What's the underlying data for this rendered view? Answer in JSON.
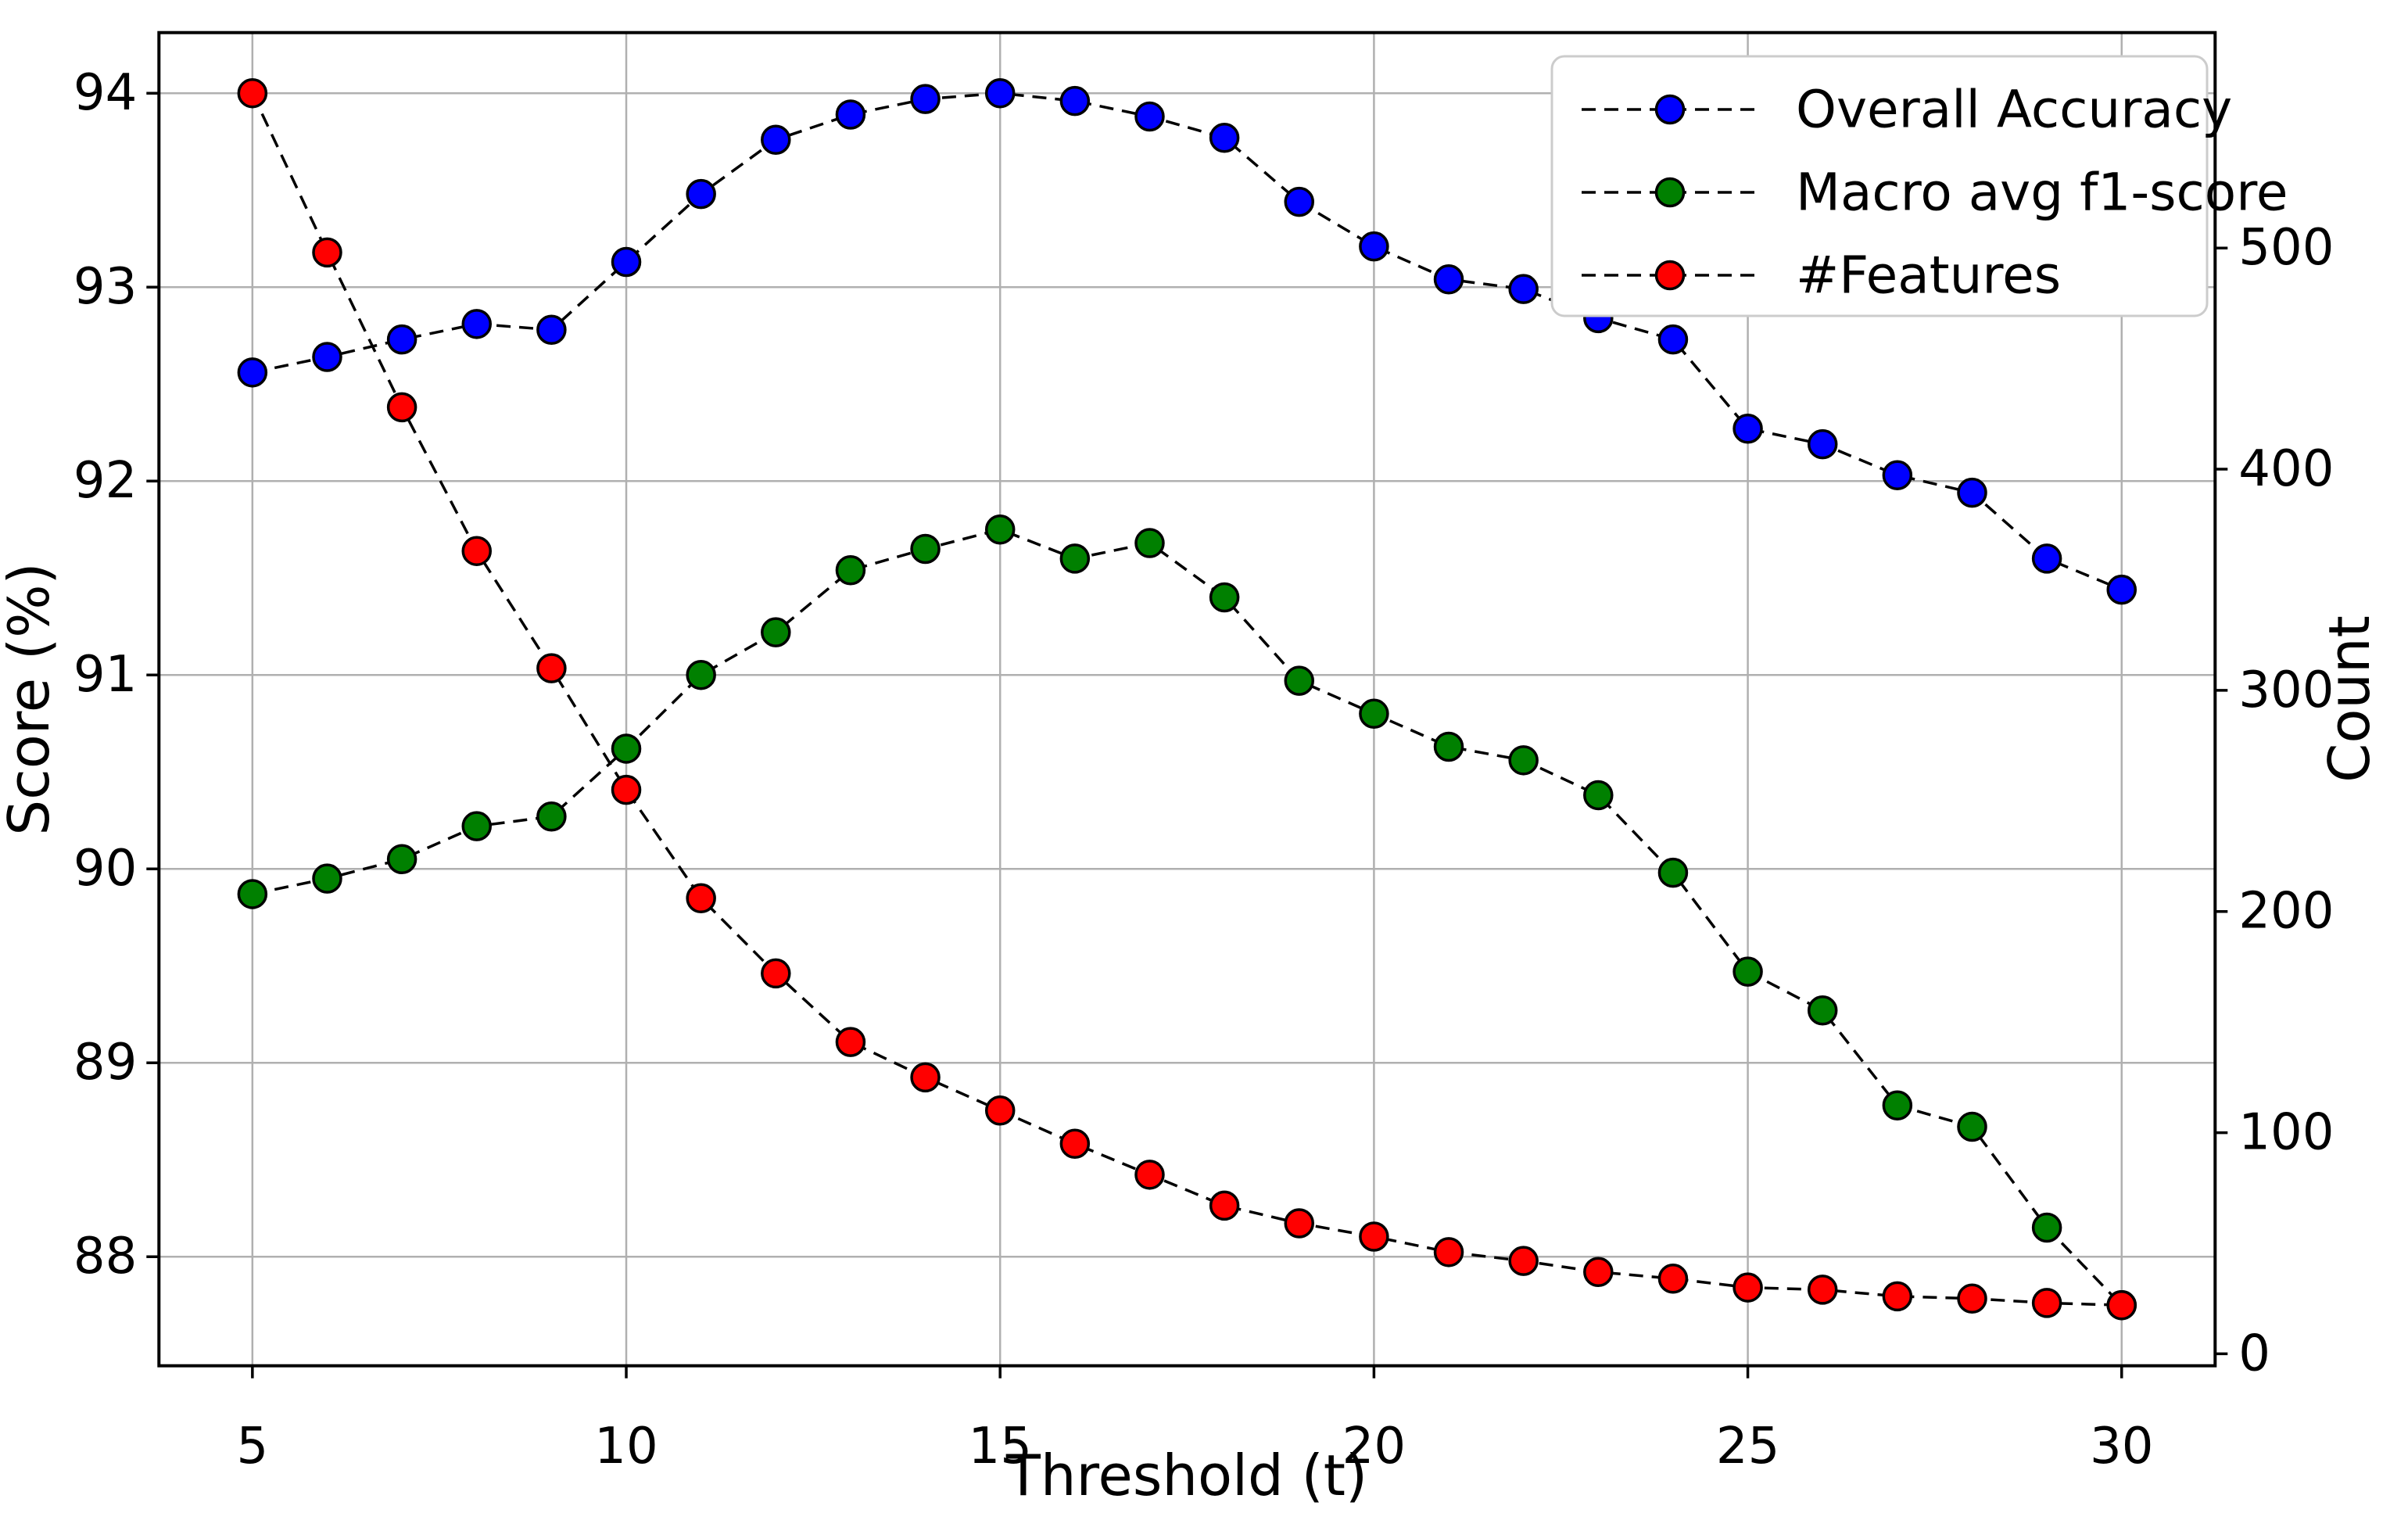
{
  "figure": {
    "background": "#ffffff"
  },
  "chart_data": {
    "type": "line",
    "title": "",
    "xlabel": "Threshold (t)",
    "ylabel_left": "Score (%)",
    "ylabel_right": "Count",
    "x": [
      5,
      6,
      7,
      8,
      9,
      10,
      11,
      12,
      13,
      14,
      15,
      16,
      17,
      18,
      19,
      20,
      21,
      22,
      23,
      24,
      25,
      26,
      27,
      28,
      29,
      30
    ],
    "series": [
      {
        "name": "Overall Accuracy",
        "axis": "left",
        "marker_color": "#0000ff",
        "line_color": "#000000",
        "values": [
          92.56,
          92.64,
          92.73,
          92.81,
          92.78,
          93.13,
          93.48,
          93.76,
          93.89,
          93.97,
          94.0,
          93.96,
          93.88,
          93.77,
          93.44,
          93.21,
          93.04,
          92.99,
          92.84,
          92.73,
          92.27,
          92.19,
          92.03,
          91.94,
          91.6,
          91.44
        ]
      },
      {
        "name": "Macro avg f1-score",
        "axis": "left",
        "marker_color": "#008000",
        "line_color": "#000000",
        "values": [
          89.87,
          89.95,
          90.05,
          90.22,
          90.27,
          90.62,
          91.0,
          91.22,
          91.54,
          91.65,
          91.75,
          91.6,
          91.68,
          91.4,
          90.97,
          90.8,
          90.63,
          90.56,
          90.38,
          89.98,
          89.47,
          89.27,
          88.78,
          88.67,
          88.15,
          87.75
        ]
      },
      {
        "name": "#Features",
        "axis": "right",
        "marker_color": "#ff0000",
        "line_color": "#000000",
        "values": [
          570,
          498,
          428,
          363,
          310,
          255,
          206,
          172,
          141,
          125,
          110,
          95,
          81,
          67,
          59,
          53,
          46,
          42,
          37,
          34,
          30,
          29,
          26,
          25,
          23,
          22
        ]
      }
    ],
    "xlim": [
      3.75,
      31.25
    ],
    "ylim_left": [
      87.4375,
      94.3125
    ],
    "ylim_right": [
      -5.4,
      597.4
    ],
    "xticks": [
      5,
      10,
      15,
      20,
      25,
      30
    ],
    "yticks_left": [
      88,
      89,
      90,
      91,
      92,
      93,
      94
    ],
    "yticks_right": [
      0,
      100,
      200,
      300,
      400,
      500
    ],
    "grid": true,
    "grid_color": "#b0b0b0",
    "spine_color": "#000000",
    "legend_position": "upper right",
    "legend_edge_color": "#cccccc",
    "line_style": "dashed",
    "marker": "circle"
  }
}
